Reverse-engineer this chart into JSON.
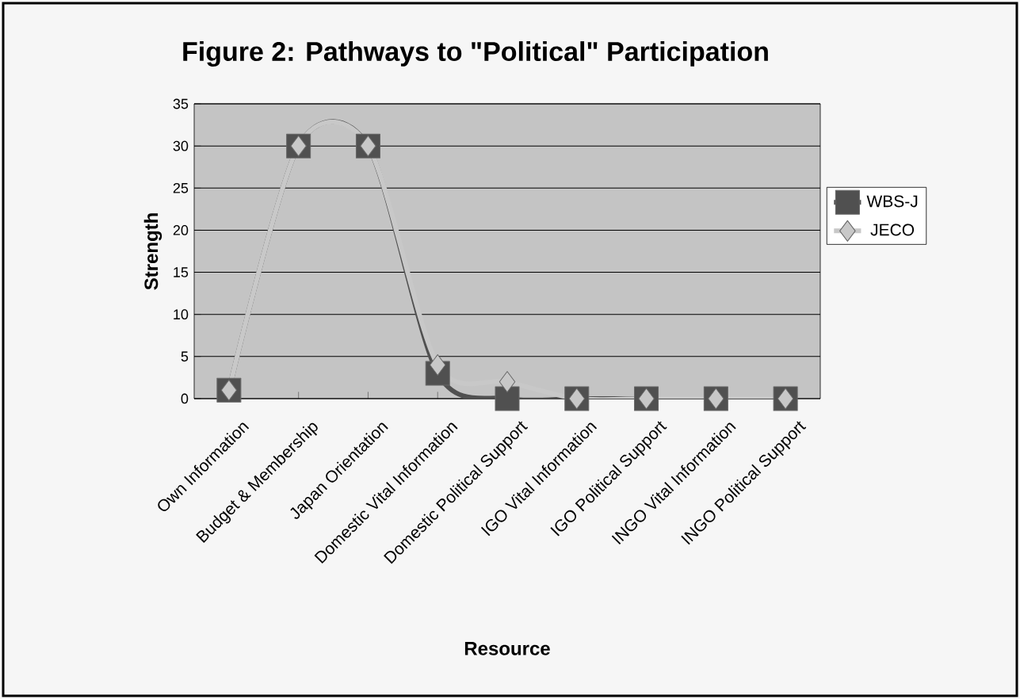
{
  "chart_data": {
    "type": "line",
    "title": "Figure 2: Pathways to \"Political\" Participation",
    "xlabel": "Resource",
    "ylabel": "Strength",
    "categories": [
      "Own Information",
      "Budget & Membership",
      "Japan Orientation",
      "Domestic Vital Information",
      "Domestic  Political Support",
      "IGO Vital Information",
      "IGO Political Support",
      "INGO Vital Information",
      "INGO Political Support"
    ],
    "series": [
      {
        "name": "WBS-J",
        "color": "#505050",
        "marker": "square",
        "values": [
          1,
          30,
          30,
          3,
          0,
          0,
          0,
          0,
          0
        ]
      },
      {
        "name": "JECO",
        "color": "#c8c8c8",
        "marker": "diamond",
        "values": [
          1,
          30,
          30,
          4,
          2,
          0,
          0,
          0,
          0
        ]
      }
    ],
    "ylim": [
      0,
      35
    ],
    "yticks": [
      0,
      5,
      10,
      15,
      20,
      25,
      30,
      35
    ],
    "grid": "y",
    "legend": "right",
    "line_style": "solid"
  }
}
